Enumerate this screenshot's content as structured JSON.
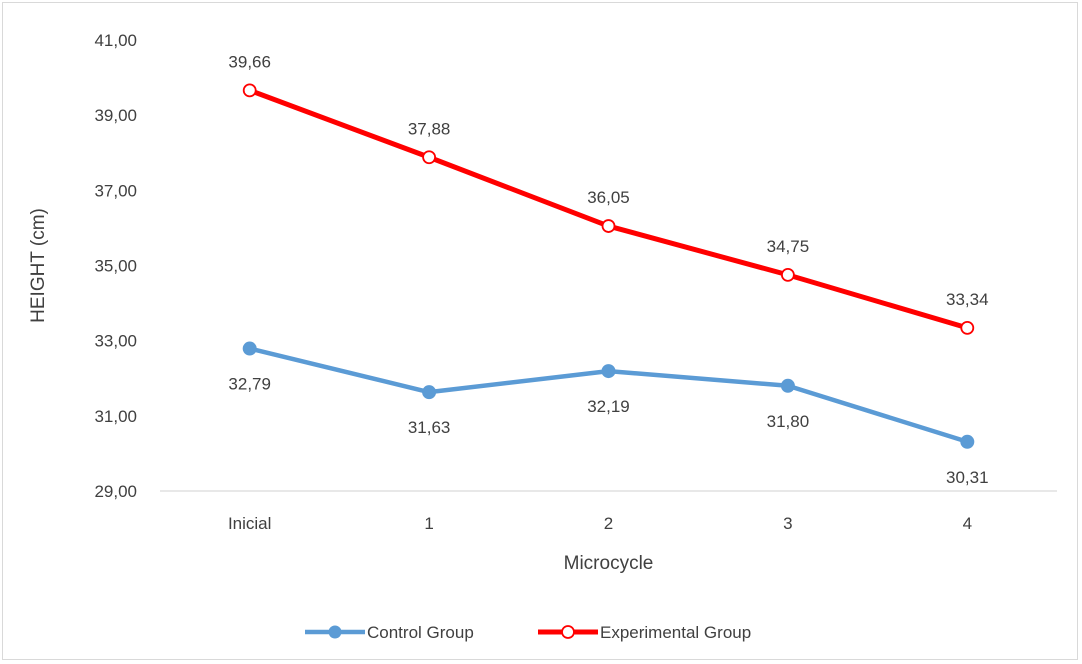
{
  "chart_data": {
    "type": "line",
    "title": "",
    "xlabel": "Microcycle",
    "ylabel": "HEIGHT (cm)",
    "categories": [
      "Inicial",
      "1",
      "2",
      "3",
      "4"
    ],
    "ylim": [
      29,
      41
    ],
    "yticks": [
      "29,00",
      "31,00",
      "33,00",
      "35,00",
      "37,00",
      "39,00",
      "41,00"
    ],
    "ytick_values": [
      29,
      31,
      33,
      35,
      37,
      39,
      41
    ],
    "grid": false,
    "legend_position": "bottom",
    "series": [
      {
        "name": "Control Group",
        "values": [
          32.79,
          31.63,
          32.19,
          31.8,
          30.31
        ],
        "labels": [
          "32,79",
          "31,63",
          "32,19",
          "31,80",
          "30,31"
        ],
        "color": "#5b9bd5",
        "marker": "filled-circle",
        "label_position": "below"
      },
      {
        "name": "Experimental Group",
        "values": [
          39.66,
          37.88,
          36.05,
          34.75,
          33.34
        ],
        "labels": [
          "39,66",
          "37,88",
          "36,05",
          "34,75",
          "33,34"
        ],
        "color": "#ff0000",
        "marker": "open-circle",
        "label_position": "above"
      }
    ]
  }
}
